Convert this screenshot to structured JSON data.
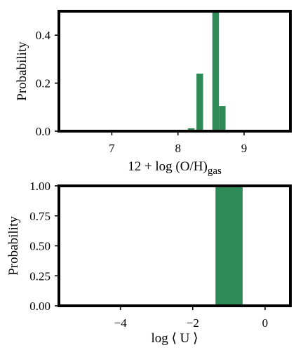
{
  "colors": {
    "bar": "#2e8b57",
    "frame": "#000000",
    "background": "#ffffff"
  },
  "chart_data": [
    {
      "type": "bar",
      "xlabel": "12 + log (O/H)",
      "xlabel_subscript": "gas",
      "ylabel": "Probability",
      "xlim": [
        6.2,
        9.7
      ],
      "ylim": [
        0,
        0.5
      ],
      "xticks": [
        7,
        8,
        9
      ],
      "yticks": [
        0.0,
        0.2,
        0.4
      ],
      "ytick_labels": [
        "0.0",
        "0.2",
        "0.4"
      ],
      "bin_width": 0.1,
      "bins": [
        {
          "x_left": 8.15,
          "value": 0.012
        },
        {
          "x_left": 8.28,
          "value": 0.24
        },
        {
          "x_left": 8.52,
          "value": 0.5
        },
        {
          "x_left": 8.62,
          "value": 0.105
        }
      ]
    },
    {
      "type": "bar",
      "xlabel": "log ⟨ U ⟩",
      "ylabel": "Probability",
      "xlim": [
        -5.7,
        0.7
      ],
      "ylim": [
        0,
        1.0
      ],
      "xticks": [
        -4,
        -2,
        0
      ],
      "xtick_labels": [
        "−4",
        "−2",
        "0"
      ],
      "yticks": [
        0.0,
        0.25,
        0.5,
        0.75,
        1.0
      ],
      "ytick_labels": [
        "0.00",
        "0.25",
        "0.50",
        "0.75",
        "1.00"
      ],
      "bin_width": 0.75,
      "bins": [
        {
          "x_left": -1.37,
          "value": 1.0
        }
      ]
    }
  ]
}
